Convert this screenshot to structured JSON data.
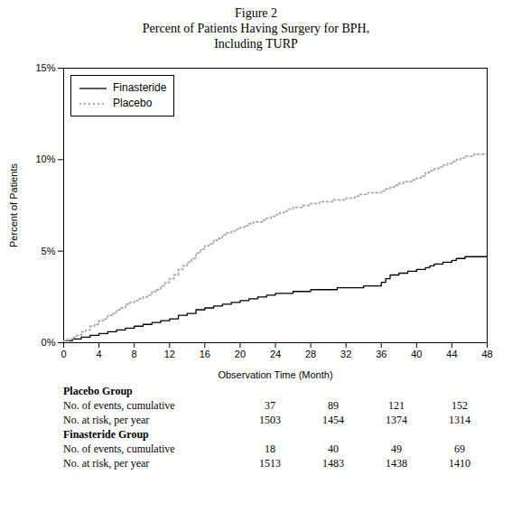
{
  "chart_data": {
    "type": "line",
    "title": "Figure 2",
    "subtitle": [
      "Percent of Patients Having Surgery for BPH,",
      "Including TURP"
    ],
    "xlabel": "Observation Time (Month)",
    "ylabel": "Percent of Patients",
    "xlim": [
      0,
      48
    ],
    "ylim": [
      0,
      0.15
    ],
    "xticks": [
      0,
      4,
      8,
      12,
      16,
      20,
      24,
      28,
      32,
      36,
      40,
      44,
      48
    ],
    "yticks": [
      {
        "value": 0,
        "label": "0%"
      },
      {
        "value": 0.05,
        "label": "5%"
      },
      {
        "value": 0.1,
        "label": "10%"
      },
      {
        "value": 0.15,
        "label": "15%"
      }
    ],
    "grid": false,
    "legend": "upper left",
    "x": [
      0,
      0.5,
      1,
      1.5,
      2,
      2.5,
      3,
      3.5,
      4,
      4.5,
      5,
      5.5,
      6,
      6.5,
      7,
      7.5,
      8,
      8.5,
      9,
      9.5,
      10,
      10.5,
      11,
      11.5,
      12,
      12.5,
      13,
      13.5,
      14,
      14.5,
      15,
      15.5,
      16,
      16.5,
      17,
      17.5,
      18,
      18.5,
      19,
      19.5,
      20,
      20.5,
      21,
      21.5,
      22,
      22.5,
      23,
      23.5,
      24,
      24.5,
      25,
      25.5,
      26,
      26.5,
      27,
      27.5,
      28,
      28.5,
      29,
      29.5,
      30,
      30.5,
      31,
      31.5,
      32,
      32.5,
      33,
      33.5,
      34,
      34.5,
      35,
      35.5,
      36,
      36.5,
      37,
      37.5,
      38,
      38.5,
      39,
      39.5,
      40,
      40.5,
      41,
      41.5,
      42,
      42.5,
      43,
      43.5,
      44,
      44.5,
      45,
      45.5,
      46,
      46.5,
      47,
      47.5,
      48
    ],
    "series": [
      {
        "name": "Finasteride",
        "color": "#000000",
        "line_style": "solid",
        "values": [
          0.001,
          0.001,
          0.002,
          0.002,
          0.003,
          0.003,
          0.004,
          0.004,
          0.005,
          0.005,
          0.006,
          0.006,
          0.007,
          0.007,
          0.008,
          0.008,
          0.009,
          0.009,
          0.01,
          0.01,
          0.011,
          0.011,
          0.012,
          0.012,
          0.013,
          0.013,
          0.015,
          0.015,
          0.016,
          0.016,
          0.018,
          0.018,
          0.019,
          0.019,
          0.02,
          0.02,
          0.021,
          0.021,
          0.022,
          0.022,
          0.023,
          0.023,
          0.024,
          0.024,
          0.025,
          0.025,
          0.026,
          0.026,
          0.027,
          0.027,
          0.027,
          0.027,
          0.028,
          0.028,
          0.028,
          0.028,
          0.029,
          0.029,
          0.029,
          0.029,
          0.029,
          0.029,
          0.03,
          0.03,
          0.03,
          0.03,
          0.03,
          0.03,
          0.031,
          0.031,
          0.031,
          0.031,
          0.033,
          0.035,
          0.037,
          0.037,
          0.038,
          0.038,
          0.039,
          0.039,
          0.04,
          0.04,
          0.041,
          0.042,
          0.043,
          0.043,
          0.044,
          0.044,
          0.045,
          0.046,
          0.046,
          0.047,
          0.047,
          0.047,
          0.047,
          0.047,
          0.047
        ]
      },
      {
        "name": "Placebo",
        "color": "#aaaaaa",
        "line_style": "dotted",
        "values": [
          0.001,
          0.002,
          0.003,
          0.004,
          0.006,
          0.007,
          0.009,
          0.01,
          0.012,
          0.013,
          0.015,
          0.016,
          0.018,
          0.019,
          0.021,
          0.022,
          0.023,
          0.024,
          0.025,
          0.026,
          0.028,
          0.029,
          0.031,
          0.033,
          0.035,
          0.037,
          0.04,
          0.042,
          0.044,
          0.046,
          0.049,
          0.051,
          0.053,
          0.054,
          0.056,
          0.057,
          0.059,
          0.06,
          0.061,
          0.062,
          0.063,
          0.064,
          0.065,
          0.066,
          0.066,
          0.067,
          0.068,
          0.069,
          0.07,
          0.071,
          0.072,
          0.073,
          0.074,
          0.074,
          0.075,
          0.075,
          0.076,
          0.076,
          0.077,
          0.077,
          0.077,
          0.078,
          0.078,
          0.078,
          0.079,
          0.079,
          0.08,
          0.081,
          0.081,
          0.082,
          0.082,
          0.082,
          0.083,
          0.084,
          0.085,
          0.086,
          0.087,
          0.088,
          0.088,
          0.089,
          0.09,
          0.091,
          0.093,
          0.094,
          0.095,
          0.096,
          0.097,
          0.098,
          0.099,
          0.1,
          0.101,
          0.102,
          0.102,
          0.103,
          0.103,
          0.103,
          0.103
        ]
      }
    ],
    "table": [
      {
        "name": "Placebo Group",
        "rows": [
          {
            "label": "No. of events, cumulative",
            "values": [
              37,
              89,
              121,
              152
            ]
          },
          {
            "label": "No. at risk, per year",
            "values": [
              1503,
              1454,
              1374,
              1314
            ]
          }
        ]
      },
      {
        "name": "Finasteride Group",
        "rows": [
          {
            "label": "No. of events, cumulative",
            "values": [
              18,
              40,
              49,
              69
            ]
          },
          {
            "label": "No. at risk, per year",
            "values": [
              1513,
              1483,
              1438,
              1410
            ]
          }
        ]
      }
    ]
  }
}
